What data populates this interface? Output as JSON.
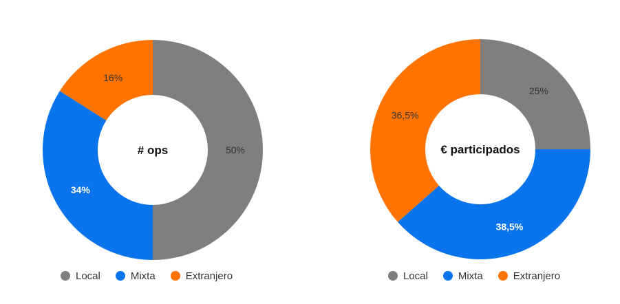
{
  "colors": {
    "Local": "#7f7f7f",
    "Mixta": "#0a74ec",
    "Extranjero": "#ff7300"
  },
  "chart_data": [
    {
      "type": "pie",
      "variant": "donut",
      "center_label": "# ops",
      "categories": [
        "Local",
        "Mixta",
        "Extranjero"
      ],
      "values": [
        50,
        34,
        16
      ],
      "value_labels": [
        "50%",
        "34%",
        "16%"
      ],
      "legend_position": "bottom"
    },
    {
      "type": "pie",
      "variant": "donut",
      "center_label": "€ participados",
      "categories": [
        "Local",
        "Mixta",
        "Extranjero"
      ],
      "values": [
        25,
        38.5,
        36.5
      ],
      "value_labels": [
        "25%",
        "38,5%",
        "36,5%"
      ],
      "legend_position": "bottom"
    }
  ],
  "legends": [
    {
      "items": [
        "Local",
        "Mixta",
        "Extranjero"
      ]
    },
    {
      "items": [
        "Local",
        "Mixta",
        "Extranjero"
      ]
    }
  ]
}
